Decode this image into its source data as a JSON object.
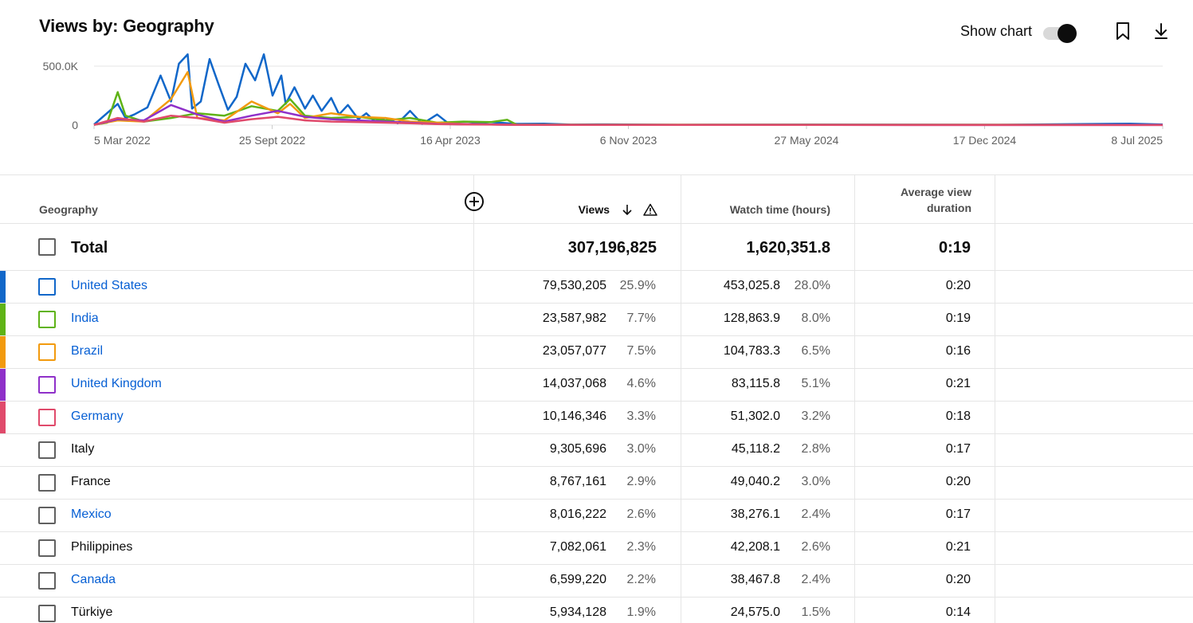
{
  "header": {
    "title": "Views by: Geography",
    "show_chart_label": "Show chart",
    "toggle_on": true
  },
  "colors": {
    "united_states": "#1167c9",
    "india": "#5fb316",
    "brazil": "#f29a0e",
    "united_kingdom": "#8f30c9",
    "germany": "#e04a6b",
    "link": "#065fd4"
  },
  "chart_data": {
    "type": "line",
    "x_tick_labels": [
      "5 Mar 2022",
      "25 Sept 2022",
      "16 Apr 2023",
      "6 Nov 2023",
      "27 May 2024",
      "17 Dec 2024",
      "8 Jul 2025"
    ],
    "y_tick_labels": [
      "0",
      "500.0K"
    ],
    "xlim": [
      "2022-03-05",
      "2025-07-08"
    ],
    "ylim": [
      0,
      500000
    ],
    "grid": true,
    "series": [
      {
        "name": "United States",
        "color": "#1167c9",
        "x": [
          "2022-03-05",
          "2022-04-01",
          "2022-04-10",
          "2022-04-20",
          "2022-05-05",
          "2022-05-20",
          "2022-06-01",
          "2022-06-10",
          "2022-06-20",
          "2022-06-25",
          "2022-07-05",
          "2022-07-15",
          "2022-07-25",
          "2022-08-05",
          "2022-08-15",
          "2022-08-25",
          "2022-09-05",
          "2022-09-15",
          "2022-09-25",
          "2022-10-05",
          "2022-10-10",
          "2022-10-20",
          "2022-11-01",
          "2022-11-10",
          "2022-11-20",
          "2022-12-01",
          "2022-12-10",
          "2022-12-20",
          "2023-01-01",
          "2023-01-10",
          "2023-01-20",
          "2023-02-01",
          "2023-02-15",
          "2023-03-01",
          "2023-03-15",
          "2023-04-01",
          "2023-04-15",
          "2023-05-01",
          "2023-06-01",
          "2023-07-01",
          "2023-08-01",
          "2023-09-01",
          "2023-10-01",
          "2024-01-01",
          "2024-06-01",
          "2025-01-01",
          "2025-06-01",
          "2025-07-08"
        ],
        "y": [
          5000,
          180000,
          60000,
          90000,
          150000,
          420000,
          200000,
          520000,
          600000,
          140000,
          200000,
          560000,
          350000,
          130000,
          240000,
          520000,
          380000,
          600000,
          250000,
          420000,
          180000,
          320000,
          140000,
          250000,
          120000,
          230000,
          90000,
          170000,
          50000,
          100000,
          30000,
          60000,
          15000,
          120000,
          10000,
          90000,
          8000,
          5000,
          25000,
          10000,
          12000,
          4000,
          6000,
          3000,
          4000,
          3000,
          12000,
          5000
        ]
      },
      {
        "name": "India",
        "color": "#5fb316",
        "x": [
          "2022-03-05",
          "2022-03-20",
          "2022-04-01",
          "2022-04-10",
          "2022-05-01",
          "2022-06-01",
          "2022-07-01",
          "2022-08-01",
          "2022-09-01",
          "2022-10-01",
          "2022-10-15",
          "2022-11-01",
          "2022-12-01",
          "2023-01-01",
          "2023-02-01",
          "2023-03-01",
          "2023-04-01",
          "2023-05-01",
          "2023-06-01",
          "2023-06-20",
          "2023-07-01",
          "2025-07-08"
        ],
        "y": [
          3000,
          20000,
          280000,
          80000,
          30000,
          60000,
          100000,
          80000,
          160000,
          120000,
          220000,
          80000,
          60000,
          70000,
          40000,
          60000,
          20000,
          30000,
          25000,
          45000,
          3000,
          2000
        ]
      },
      {
        "name": "Brazil",
        "color": "#f29a0e",
        "x": [
          "2022-03-05",
          "2022-04-01",
          "2022-05-01",
          "2022-06-01",
          "2022-06-20",
          "2022-07-01",
          "2022-08-01",
          "2022-09-01",
          "2022-10-01",
          "2022-10-15",
          "2022-11-01",
          "2022-12-01",
          "2023-01-01",
          "2023-02-01",
          "2023-03-01",
          "2023-04-01",
          "2023-05-01",
          "2023-06-01",
          "2023-07-01",
          "2025-07-08"
        ],
        "y": [
          2000,
          40000,
          30000,
          220000,
          450000,
          60000,
          40000,
          200000,
          100000,
          180000,
          60000,
          100000,
          70000,
          60000,
          30000,
          20000,
          10000,
          5000,
          3000,
          2000
        ]
      },
      {
        "name": "United Kingdom",
        "color": "#8f30c9",
        "x": [
          "2022-03-05",
          "2022-04-01",
          "2022-05-01",
          "2022-06-01",
          "2022-07-01",
          "2022-08-01",
          "2022-09-01",
          "2022-10-01",
          "2022-11-01",
          "2022-12-01",
          "2023-01-01",
          "2023-02-01",
          "2023-03-01",
          "2023-04-01",
          "2023-05-01",
          "2023-06-01",
          "2023-07-01",
          "2025-07-08"
        ],
        "y": [
          2000,
          50000,
          40000,
          170000,
          90000,
          30000,
          80000,
          120000,
          70000,
          50000,
          40000,
          30000,
          20000,
          10000,
          8000,
          5000,
          2000,
          1000
        ]
      },
      {
        "name": "Germany",
        "color": "#e04a6b",
        "x": [
          "2022-03-05",
          "2022-04-01",
          "2022-05-01",
          "2022-06-01",
          "2022-07-01",
          "2022-08-01",
          "2022-09-01",
          "2022-10-01",
          "2022-11-01",
          "2022-12-01",
          "2023-01-01",
          "2023-02-01",
          "2023-03-01",
          "2023-04-01",
          "2023-05-01",
          "2023-06-01",
          "2023-07-01",
          "2025-07-08"
        ],
        "y": [
          2000,
          60000,
          30000,
          80000,
          60000,
          20000,
          50000,
          70000,
          40000,
          30000,
          25000,
          20000,
          15000,
          8000,
          5000,
          4000,
          2000,
          1000
        ]
      }
    ]
  },
  "table": {
    "columns": {
      "geography": "Geography",
      "views": "Views",
      "watch_time": "Watch time (hours)",
      "avg_duration": "Average view duration"
    },
    "total": {
      "label": "Total",
      "views": "307,196,825",
      "watch_time": "1,620,351.8",
      "avg_duration": "0:19"
    },
    "rows": [
      {
        "name": "United States",
        "link": true,
        "color": "#1167c9",
        "views": "79,530,205",
        "views_pct": "25.9%",
        "watch": "453,025.8",
        "watch_pct": "28.0%",
        "avg": "0:20"
      },
      {
        "name": "India",
        "link": true,
        "color": "#5fb316",
        "views": "23,587,982",
        "views_pct": "7.7%",
        "watch": "128,863.9",
        "watch_pct": "8.0%",
        "avg": "0:19"
      },
      {
        "name": "Brazil",
        "link": true,
        "color": "#f29a0e",
        "views": "23,057,077",
        "views_pct": "7.5%",
        "watch": "104,783.3",
        "watch_pct": "6.5%",
        "avg": "0:16"
      },
      {
        "name": "United Kingdom",
        "link": true,
        "color": "#8f30c9",
        "views": "14,037,068",
        "views_pct": "4.6%",
        "watch": "83,115.8",
        "watch_pct": "5.1%",
        "avg": "0:21"
      },
      {
        "name": "Germany",
        "link": true,
        "color": "#e04a6b",
        "views": "10,146,346",
        "views_pct": "3.3%",
        "watch": "51,302.0",
        "watch_pct": "3.2%",
        "avg": "0:18"
      },
      {
        "name": "Italy",
        "link": false,
        "color": "",
        "views": "9,305,696",
        "views_pct": "3.0%",
        "watch": "45,118.2",
        "watch_pct": "2.8%",
        "avg": "0:17"
      },
      {
        "name": "France",
        "link": false,
        "color": "",
        "views": "8,767,161",
        "views_pct": "2.9%",
        "watch": "49,040.2",
        "watch_pct": "3.0%",
        "avg": "0:20"
      },
      {
        "name": "Mexico",
        "link": true,
        "color": "",
        "views": "8,016,222",
        "views_pct": "2.6%",
        "watch": "38,276.1",
        "watch_pct": "2.4%",
        "avg": "0:17"
      },
      {
        "name": "Philippines",
        "link": false,
        "color": "",
        "views": "7,082,061",
        "views_pct": "2.3%",
        "watch": "42,208.1",
        "watch_pct": "2.6%",
        "avg": "0:21"
      },
      {
        "name": "Canada",
        "link": true,
        "color": "",
        "views": "6,599,220",
        "views_pct": "2.2%",
        "watch": "38,467.8",
        "watch_pct": "2.4%",
        "avg": "0:20"
      },
      {
        "name": "Türkiye",
        "link": false,
        "color": "",
        "views": "5,934,128",
        "views_pct": "1.9%",
        "watch": "24,575.0",
        "watch_pct": "1.5%",
        "avg": "0:14"
      }
    ]
  },
  "icons": {
    "bookmark": "bookmark-icon",
    "download": "download-icon",
    "add_column": "add-circle-icon",
    "sort": "arrow-down-icon",
    "warning": "warning-icon"
  }
}
